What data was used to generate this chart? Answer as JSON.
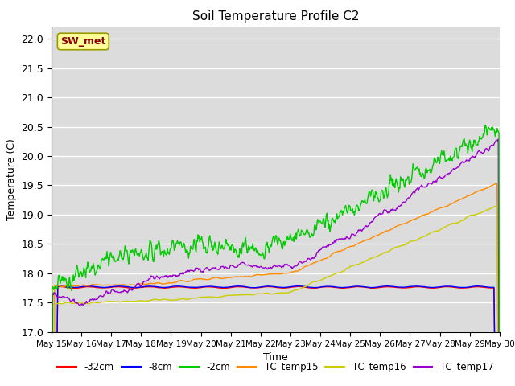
{
  "title": "Soil Temperature Profile C2",
  "xlabel": "Time",
  "ylabel": "Temperature (C)",
  "ylim": [
    17.0,
    22.2
  ],
  "annotation_text": "SW_met",
  "annotation_box_color": "#ffff99",
  "annotation_text_color": "#8b0000",
  "bg_color": "#dcdcdc",
  "grid_color": "#ffffff",
  "x_tick_labels": [
    "May 15",
    "May 16",
    "May 17",
    "May 18",
    "May 19",
    "May 20",
    "May 21",
    "May 22",
    "May 23",
    "May 24",
    "May 25",
    "May 26",
    "May 27",
    "May 28",
    "May 29",
    "May 30"
  ],
  "series": {
    "neg32cm": {
      "color": "#ff0000",
      "label": "-32cm"
    },
    "neg8cm": {
      "color": "#0000ff",
      "label": "-8cm"
    },
    "neg2cm": {
      "color": "#00cc00",
      "label": "-2cm"
    },
    "TC_temp15": {
      "color": "#ff8c00",
      "label": "TC_temp15"
    },
    "TC_temp16": {
      "color": "#cccc00",
      "label": "TC_temp16"
    },
    "TC_temp17": {
      "color": "#9900cc",
      "label": "TC_temp17"
    }
  }
}
